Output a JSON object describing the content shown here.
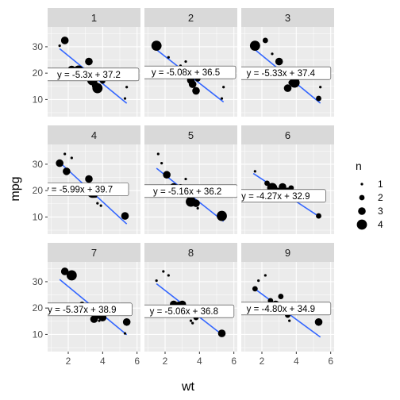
{
  "chart_data": {
    "type": "scatter",
    "facet_layout": "3x3",
    "xlabel": "wt",
    "ylabel": "mpg",
    "xlim": [
      0.8,
      6.2
    ],
    "ylim": [
      3.5,
      37.5
    ],
    "x_ticks": [
      2,
      4,
      6
    ],
    "y_ticks": [
      10,
      20,
      30
    ],
    "grid": true,
    "legend": {
      "title": "n",
      "placement": "right",
      "entries": [
        {
          "label": "1",
          "n": 1
        },
        {
          "label": "2",
          "n": 2
        },
        {
          "label": "3",
          "n": 3
        },
        {
          "label": "4",
          "n": 4
        }
      ]
    },
    "colors": {
      "panel_bg": "#ebebeb",
      "grid": "#ffffff",
      "strip_bg": "#d9d9d9",
      "points": "#000000",
      "fit_line": "#3366ff"
    },
    "panels": [
      {
        "label": "1",
        "equation": "y = -5.3x + 37.2",
        "fit": {
          "slope": -5.3,
          "intercept": 37.2,
          "x_range": [
            1.5,
            5.4
          ]
        },
        "label_pos": {
          "x": 3.2,
          "y": 19.5
        },
        "points": [
          {
            "x": 1.5,
            "y": 30.4,
            "n": 1
          },
          {
            "x": 1.8,
            "y": 32.4,
            "n": 3
          },
          {
            "x": 2.2,
            "y": 21.4,
            "n": 3
          },
          {
            "x": 2.6,
            "y": 21.0,
            "n": 4
          },
          {
            "x": 3.2,
            "y": 24.4,
            "n": 3
          },
          {
            "x": 3.2,
            "y": 19.2,
            "n": 1
          },
          {
            "x": 3.4,
            "y": 17.3,
            "n": 4
          },
          {
            "x": 3.5,
            "y": 18.7,
            "n": 3
          },
          {
            "x": 3.6,
            "y": 15.2,
            "n": 3
          },
          {
            "x": 3.7,
            "y": 14.3,
            "n": 4
          },
          {
            "x": 3.9,
            "y": 19.2,
            "n": 4
          },
          {
            "x": 4.0,
            "y": 17.0,
            "n": 2
          },
          {
            "x": 5.3,
            "y": 10.4,
            "n": 1
          },
          {
            "x": 5.4,
            "y": 14.7,
            "n": 1
          }
        ]
      },
      {
        "label": "2",
        "equation": "y = -5.08x + 36.5",
        "fit": {
          "slope": -5.08,
          "intercept": 36.5,
          "x_range": [
            1.5,
            5.4
          ]
        },
        "label_pos": {
          "x": 3.2,
          "y": 20.3
        },
        "points": [
          {
            "x": 1.5,
            "y": 30.4,
            "n": 4
          },
          {
            "x": 2.2,
            "y": 26.0,
            "n": 1
          },
          {
            "x": 2.6,
            "y": 21.5,
            "n": 2
          },
          {
            "x": 2.9,
            "y": 22.8,
            "n": 1
          },
          {
            "x": 3.2,
            "y": 24.4,
            "n": 1
          },
          {
            "x": 3.4,
            "y": 18.1,
            "n": 1
          },
          {
            "x": 3.5,
            "y": 17.3,
            "n": 3
          },
          {
            "x": 3.6,
            "y": 15.8,
            "n": 3
          },
          {
            "x": 3.8,
            "y": 13.3,
            "n": 3
          },
          {
            "x": 3.9,
            "y": 17.8,
            "n": 2
          },
          {
            "x": 5.3,
            "y": 10.4,
            "n": 1
          },
          {
            "x": 5.4,
            "y": 14.7,
            "n": 1
          }
        ]
      },
      {
        "label": "3",
        "equation": "y = -5.33x + 37.4",
        "fit": {
          "slope": -5.33,
          "intercept": 37.4,
          "x_range": [
            1.5,
            5.4
          ]
        },
        "label_pos": {
          "x": 3.1,
          "y": 20.0
        },
        "points": [
          {
            "x": 1.6,
            "y": 30.4,
            "n": 4
          },
          {
            "x": 2.2,
            "y": 32.4,
            "n": 2
          },
          {
            "x": 2.6,
            "y": 27.3,
            "n": 1
          },
          {
            "x": 3.0,
            "y": 24.4,
            "n": 3
          },
          {
            "x": 3.2,
            "y": 21.0,
            "n": 2
          },
          {
            "x": 3.4,
            "y": 19.2,
            "n": 1
          },
          {
            "x": 3.5,
            "y": 14.3,
            "n": 3
          },
          {
            "x": 3.7,
            "y": 16.4,
            "n": 2
          },
          {
            "x": 3.9,
            "y": 16.4,
            "n": 4
          },
          {
            "x": 5.3,
            "y": 10.4,
            "n": 2
          },
          {
            "x": 5.4,
            "y": 14.7,
            "n": 1
          }
        ]
      },
      {
        "label": "4",
        "equation": "y = -5.99x + 39.7",
        "fit": {
          "slope": -5.99,
          "intercept": 39.7,
          "x_range": [
            1.5,
            5.4
          ]
        },
        "label_pos": {
          "x": 2.6,
          "y": 20.5
        },
        "points": [
          {
            "x": 1.5,
            "y": 30.4,
            "n": 3
          },
          {
            "x": 1.8,
            "y": 33.9,
            "n": 1
          },
          {
            "x": 1.9,
            "y": 27.3,
            "n": 3
          },
          {
            "x": 2.2,
            "y": 32.4,
            "n": 1
          },
          {
            "x": 3.2,
            "y": 24.4,
            "n": 3
          },
          {
            "x": 3.3,
            "y": 21.0,
            "n": 1
          },
          {
            "x": 3.4,
            "y": 19.2,
            "n": 4
          },
          {
            "x": 3.5,
            "y": 18.7,
            "n": 3
          },
          {
            "x": 3.6,
            "y": 17.8,
            "n": 1
          },
          {
            "x": 3.7,
            "y": 15.2,
            "n": 1
          },
          {
            "x": 3.9,
            "y": 14.3,
            "n": 1
          },
          {
            "x": 5.3,
            "y": 10.4,
            "n": 3
          },
          {
            "x": 5.4,
            "y": 10.4,
            "n": 1
          }
        ]
      },
      {
        "label": "5",
        "equation": "y = -5.16x + 36.2",
        "fit": {
          "slope": -5.16,
          "intercept": 36.2,
          "x_range": [
            1.5,
            5.4
          ]
        },
        "label_pos": {
          "x": 3.3,
          "y": 19.8
        },
        "points": [
          {
            "x": 1.6,
            "y": 33.9,
            "n": 1
          },
          {
            "x": 1.8,
            "y": 30.4,
            "n": 1
          },
          {
            "x": 2.1,
            "y": 26.0,
            "n": 3
          },
          {
            "x": 2.5,
            "y": 21.4,
            "n": 3
          },
          {
            "x": 2.9,
            "y": 21.0,
            "n": 3
          },
          {
            "x": 3.2,
            "y": 24.4,
            "n": 1
          },
          {
            "x": 3.4,
            "y": 19.2,
            "n": 3
          },
          {
            "x": 3.5,
            "y": 15.8,
            "n": 4
          },
          {
            "x": 3.8,
            "y": 15.2,
            "n": 3
          },
          {
            "x": 3.9,
            "y": 13.3,
            "n": 1
          },
          {
            "x": 5.3,
            "y": 10.4,
            "n": 4
          }
        ]
      },
      {
        "label": "6",
        "equation": "y = -4.27x + 32.9",
        "fit": {
          "slope": -4.27,
          "intercept": 32.9,
          "x_range": [
            1.5,
            5.4
          ]
        },
        "label_pos": {
          "x": 2.8,
          "y": 18.0
        },
        "points": [
          {
            "x": 1.6,
            "y": 27.3,
            "n": 1
          },
          {
            "x": 2.3,
            "y": 22.8,
            "n": 2
          },
          {
            "x": 2.6,
            "y": 21.0,
            "n": 4
          },
          {
            "x": 2.9,
            "y": 19.7,
            "n": 3
          },
          {
            "x": 3.2,
            "y": 21.4,
            "n": 3
          },
          {
            "x": 3.4,
            "y": 17.8,
            "n": 2
          },
          {
            "x": 3.5,
            "y": 19.2,
            "n": 4
          },
          {
            "x": 3.6,
            "y": 16.4,
            "n": 1
          },
          {
            "x": 3.7,
            "y": 21.0,
            "n": 2
          },
          {
            "x": 5.3,
            "y": 10.4,
            "n": 2
          }
        ]
      },
      {
        "label": "7",
        "equation": "y = -5.37x + 38.9",
        "fit": {
          "slope": -5.37,
          "intercept": 38.9,
          "x_range": [
            1.5,
            5.4
          ]
        },
        "label_pos": {
          "x": 2.8,
          "y": 19.5
        },
        "points": [
          {
            "x": 1.8,
            "y": 33.9,
            "n": 3
          },
          {
            "x": 2.2,
            "y": 32.4,
            "n": 4
          },
          {
            "x": 2.8,
            "y": 21.4,
            "n": 2
          },
          {
            "x": 3.2,
            "y": 21.0,
            "n": 1
          },
          {
            "x": 3.4,
            "y": 19.2,
            "n": 3
          },
          {
            "x": 3.5,
            "y": 15.8,
            "n": 3
          },
          {
            "x": 3.7,
            "y": 17.3,
            "n": 3
          },
          {
            "x": 3.8,
            "y": 15.2,
            "n": 1
          },
          {
            "x": 4.0,
            "y": 16.4,
            "n": 3
          },
          {
            "x": 5.3,
            "y": 10.4,
            "n": 1
          },
          {
            "x": 5.4,
            "y": 14.7,
            "n": 3
          }
        ]
      },
      {
        "label": "8",
        "equation": "y = -5.06x + 36.8",
        "fit": {
          "slope": -5.06,
          "intercept": 36.8,
          "x_range": [
            1.5,
            5.4
          ]
        },
        "label_pos": {
          "x": 3.1,
          "y": 18.8
        },
        "points": [
          {
            "x": 1.5,
            "y": 30.4,
            "n": 1
          },
          {
            "x": 1.9,
            "y": 33.9,
            "n": 1
          },
          {
            "x": 2.2,
            "y": 32.4,
            "n": 1
          },
          {
            "x": 2.5,
            "y": 21.4,
            "n": 3
          },
          {
            "x": 2.8,
            "y": 21.0,
            "n": 3
          },
          {
            "x": 3.0,
            "y": 21.4,
            "n": 3
          },
          {
            "x": 3.2,
            "y": 19.2,
            "n": 3
          },
          {
            "x": 3.4,
            "y": 17.8,
            "n": 3
          },
          {
            "x": 3.5,
            "y": 15.2,
            "n": 1
          },
          {
            "x": 3.6,
            "y": 14.3,
            "n": 1
          },
          {
            "x": 3.8,
            "y": 16.4,
            "n": 2
          },
          {
            "x": 5.3,
            "y": 10.4,
            "n": 3
          }
        ]
      },
      {
        "label": "9",
        "equation": "y = -4.80x + 34.9",
        "fit": {
          "slope": -4.8,
          "intercept": 34.9,
          "x_range": [
            1.5,
            5.4
          ]
        },
        "label_pos": {
          "x": 3.1,
          "y": 19.8
        },
        "points": [
          {
            "x": 1.6,
            "y": 27.3,
            "n": 2
          },
          {
            "x": 1.8,
            "y": 30.4,
            "n": 1
          },
          {
            "x": 2.2,
            "y": 32.4,
            "n": 1
          },
          {
            "x": 2.5,
            "y": 22.8,
            "n": 2
          },
          {
            "x": 2.8,
            "y": 21.4,
            "n": 3
          },
          {
            "x": 3.1,
            "y": 24.4,
            "n": 2
          },
          {
            "x": 3.2,
            "y": 21.0,
            "n": 2
          },
          {
            "x": 3.4,
            "y": 19.2,
            "n": 3
          },
          {
            "x": 3.5,
            "y": 17.3,
            "n": 2
          },
          {
            "x": 3.6,
            "y": 15.2,
            "n": 1
          },
          {
            "x": 3.7,
            "y": 19.7,
            "n": 3
          },
          {
            "x": 5.3,
            "y": 14.7,
            "n": 3
          }
        ]
      }
    ]
  }
}
